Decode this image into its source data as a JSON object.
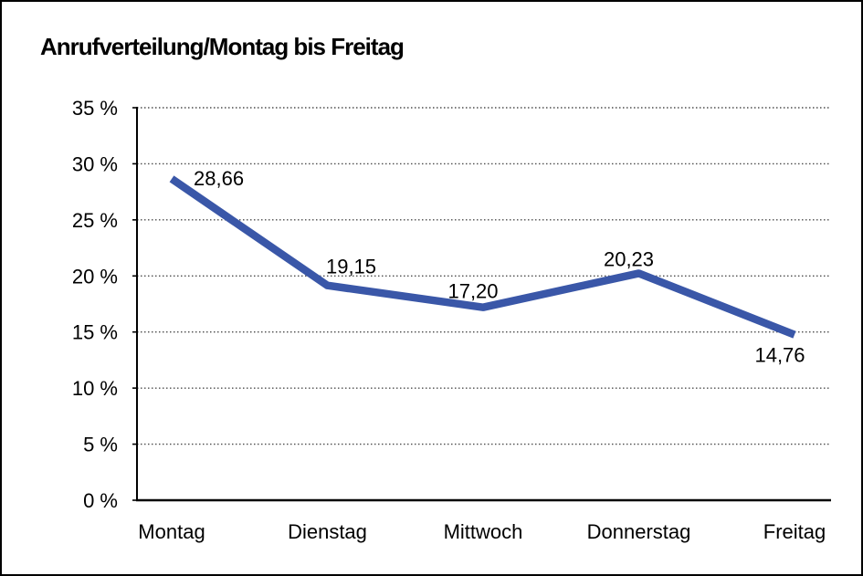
{
  "chart_data": {
    "type": "line",
    "title": "Anrufverteilung/Montag bis Freitag",
    "categories": [
      "Montag",
      "Dienstag",
      "Mittwoch",
      "Donnerstag",
      "Freitag"
    ],
    "series": [
      {
        "name": "Anrufverteilung",
        "values": [
          28.66,
          19.15,
          17.2,
          20.23,
          14.76
        ]
      }
    ],
    "data_labels": [
      "28,66",
      "19,15",
      "17,20",
      "20,23",
      "14,76"
    ],
    "xlabel": "",
    "ylabel": "",
    "ylim": [
      0,
      35
    ],
    "y_step": 5,
    "y_tick_labels": [
      "0 %",
      "5 %",
      "10 %",
      "15 %",
      "20 %",
      "25 %",
      "30 %",
      "35 %"
    ],
    "grid": "horizontal-dotted",
    "legend_position": "none",
    "colors": {
      "line": "#3A57A8",
      "axis": "#000000",
      "gridline": "#4d4d4d",
      "text": "#000000",
      "background": "#ffffff",
      "frame_border": "#000000"
    }
  }
}
